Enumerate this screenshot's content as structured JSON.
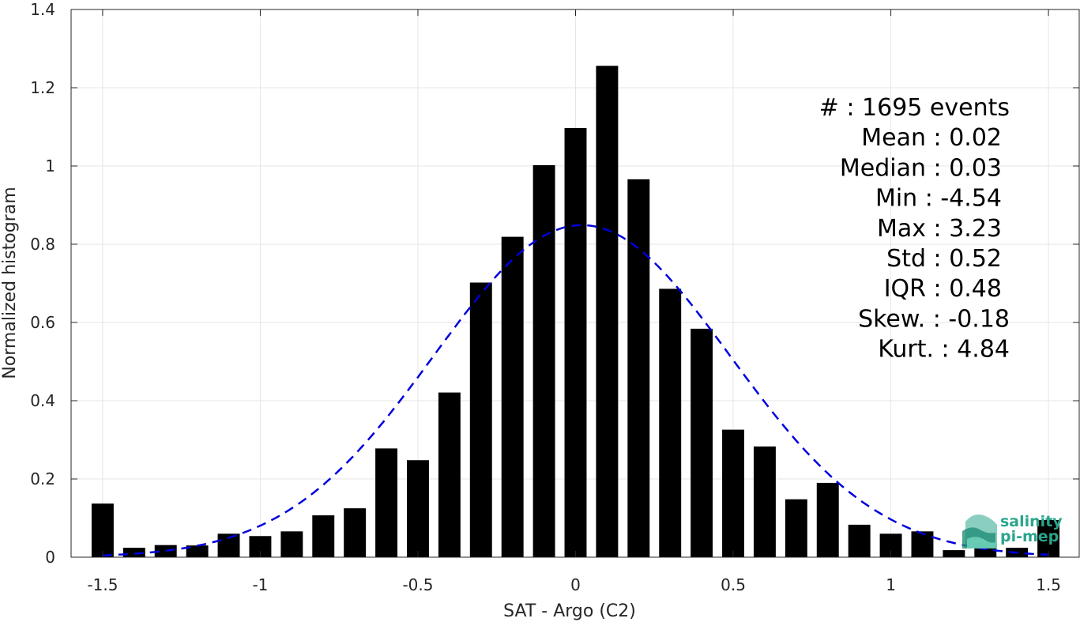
{
  "chart_data": {
    "type": "bar",
    "xlabel": "SAT - Argo (C2)",
    "ylabel": "Normalized histogram",
    "xlim": [
      -1.6,
      1.6
    ],
    "ylim": [
      0,
      1.4
    ],
    "xticks": [
      -1.5,
      -1,
      -0.5,
      0,
      0.5,
      1,
      1.5
    ],
    "xtick_labels": [
      "-1.5",
      "-1",
      "-0.5",
      "0",
      "0.5",
      "1",
      "1.5"
    ],
    "yticks": [
      0,
      0.2,
      0.4,
      0.6,
      0.8,
      1,
      1.2,
      1.4
    ],
    "ytick_labels": [
      "0",
      "0.2",
      "0.4",
      "0.6",
      "0.8",
      "1",
      "1.2",
      "1.4"
    ],
    "grid": true,
    "bar_color": "#000000",
    "bin_width": 0.1,
    "bins": [
      -1.5,
      -1.4,
      -1.3,
      -1.2,
      -1.1,
      -1.0,
      -0.9,
      -0.8,
      -0.7,
      -0.6,
      -0.5,
      -0.4,
      -0.3,
      -0.2,
      -0.1,
      0.0,
      0.1,
      0.2,
      0.3,
      0.4,
      0.5,
      0.6,
      0.7,
      0.8,
      0.9,
      1.0,
      1.1,
      1.2,
      1.3,
      1.4,
      1.5
    ],
    "values": [
      0.137,
      0.024,
      0.031,
      0.03,
      0.06,
      0.054,
      0.066,
      0.107,
      0.125,
      0.278,
      0.248,
      0.421,
      0.702,
      0.819,
      1.002,
      1.097,
      1.256,
      0.966,
      0.686,
      0.584,
      0.326,
      0.283,
      0.148,
      0.19,
      0.083,
      0.06,
      0.066,
      0.018,
      0.036,
      0.024,
      0.095
    ],
    "fit": {
      "type": "gaussian",
      "mean": 0.02,
      "std": 0.47,
      "color": "#0000dd",
      "style": "dashed"
    },
    "annotations": [
      "#  : 1695 events",
      "Mean : 0.02",
      "Median : 0.03",
      "Min : -4.54",
      "Max : 3.23",
      "Std : 0.52",
      "IQR : 0.48",
      "Skew. : -0.18",
      "Kurt. : 4.84"
    ]
  },
  "logo": {
    "line1": "salinity",
    "line2": "pi-mep",
    "color": "#2aa58c"
  }
}
